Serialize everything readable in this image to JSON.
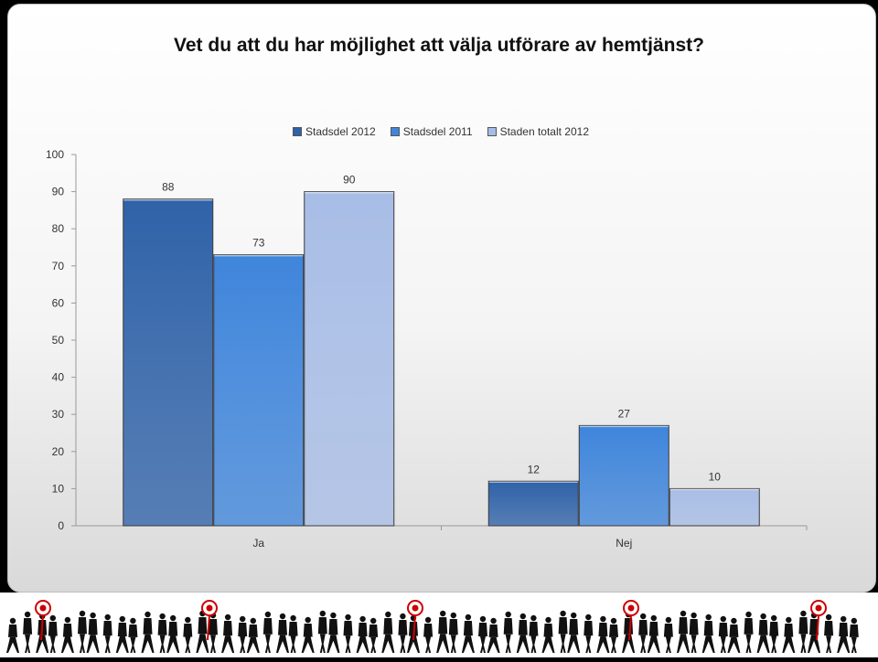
{
  "page": {
    "title": "Vet du att du har möjlighet att välja utförare av hemtjänst?"
  },
  "chart_data": {
    "type": "bar",
    "title": "Vet du att du har möjlighet att välja utförare av hemtjänst?",
    "categories": [
      "Ja",
      "Nej"
    ],
    "series": [
      {
        "name": "Stadsdel 2012",
        "values": [
          88,
          12
        ],
        "color": "#2f62a8"
      },
      {
        "name": "Stadsdel 2011",
        "values": [
          73,
          27
        ],
        "color": "#3f85db"
      },
      {
        "name": "Staden totalt 2012",
        "values": [
          90,
          10
        ],
        "color": "#a8bde6"
      }
    ],
    "ylim": [
      0,
      100
    ],
    "yticks": [
      0,
      10,
      20,
      30,
      40,
      50,
      60,
      70,
      80,
      90,
      100
    ],
    "grid": false,
    "legend": "top",
    "xlabel": "",
    "ylabel": ""
  },
  "footer": {
    "decoration": "silhouettes-of-walking-people-with-targets"
  }
}
